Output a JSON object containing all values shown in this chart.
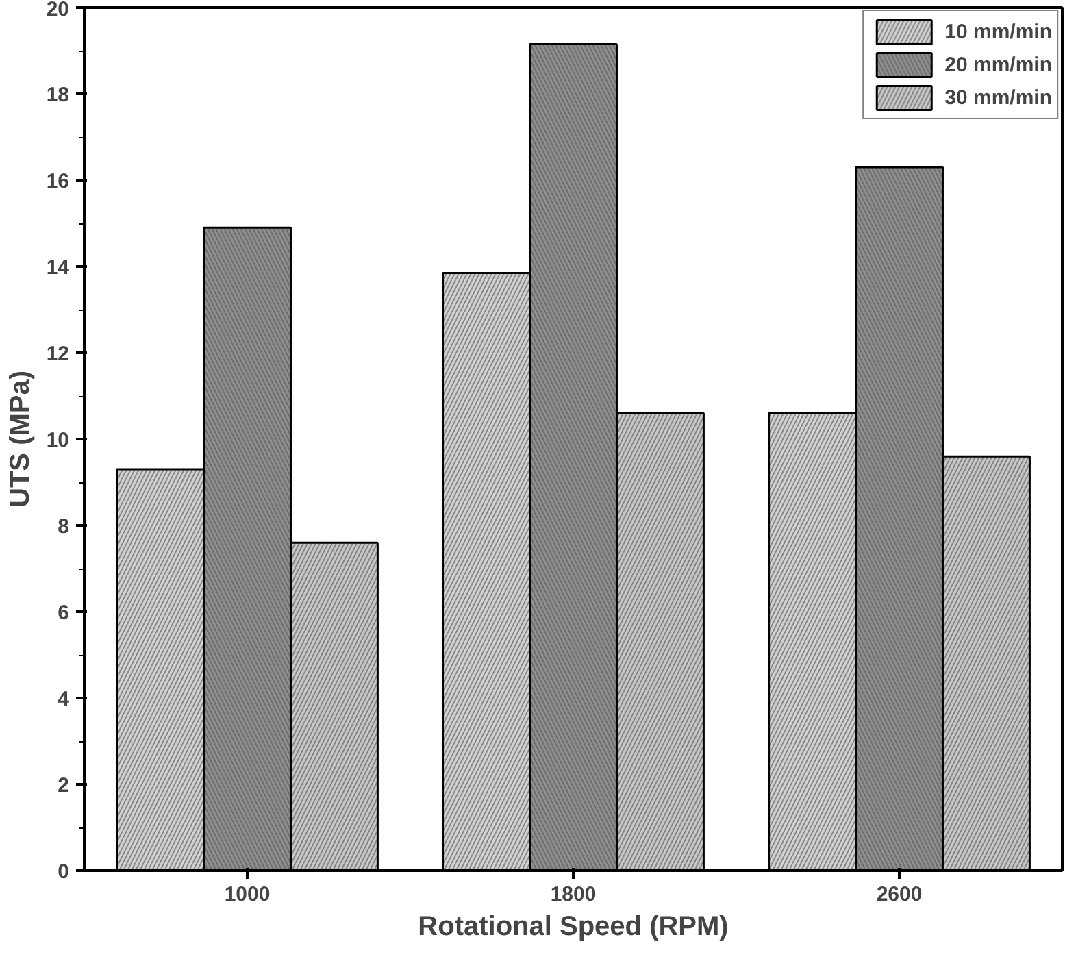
{
  "chart_data": {
    "type": "bar",
    "xlabel": "Rotational Speed (RPM)",
    "ylabel": "UTS (MPa)",
    "categories": [
      "1000",
      "1800",
      "2600"
    ],
    "series": [
      {
        "name": "10 mm/min",
        "color": "#d2d2d2",
        "values": [
          9.3,
          13.85,
          10.6
        ]
      },
      {
        "name": "20 mm/min",
        "color": "#8e8e8e",
        "values": [
          14.9,
          19.15,
          16.3
        ]
      },
      {
        "name": "30 mm/min",
        "color": "#c8c8c8",
        "values": [
          7.6,
          10.6,
          9.6
        ]
      }
    ],
    "ylim": [
      0,
      20
    ],
    "yticks": [
      0,
      2,
      4,
      6,
      8,
      10,
      12,
      14,
      16,
      18,
      20
    ],
    "grid": false,
    "legend": "top right"
  }
}
